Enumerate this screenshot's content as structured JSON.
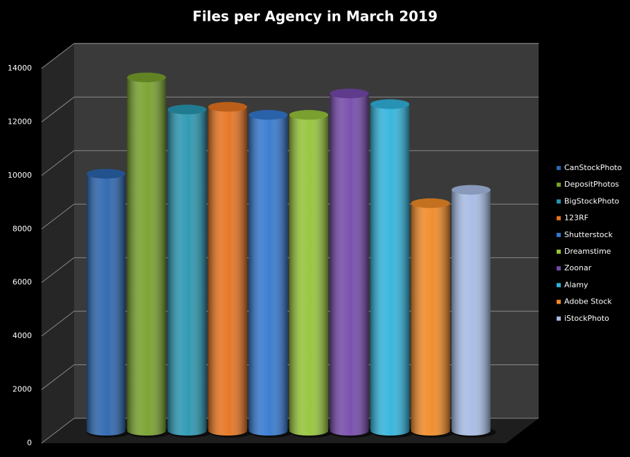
{
  "chart_data": {
    "type": "bar",
    "title": "Files per Agency in March 2019",
    "categories": [
      "CanStockPhoto",
      "DepositPhotos",
      "BigStockPhoto",
      "123RF",
      "Shutterstock",
      "Dreamstime",
      "Zoonar",
      "Alamy",
      "Adobe Stock",
      "iStockPhoto"
    ],
    "values": [
      9600,
      13200,
      12000,
      12100,
      11800,
      11800,
      12600,
      12200,
      8500,
      9000
    ],
    "colors": [
      "#2a64ae",
      "#77a02c",
      "#2996b0",
      "#e5731f",
      "#3478d0",
      "#95c43a",
      "#7549aa",
      "#31b3dc",
      "#f08a26",
      "#a6bbe4"
    ],
    "ylim": [
      0,
      14000
    ],
    "yticks": [
      0,
      2000,
      4000,
      6000,
      8000,
      10000,
      12000,
      14000
    ],
    "grid": true,
    "legend": "right"
  }
}
